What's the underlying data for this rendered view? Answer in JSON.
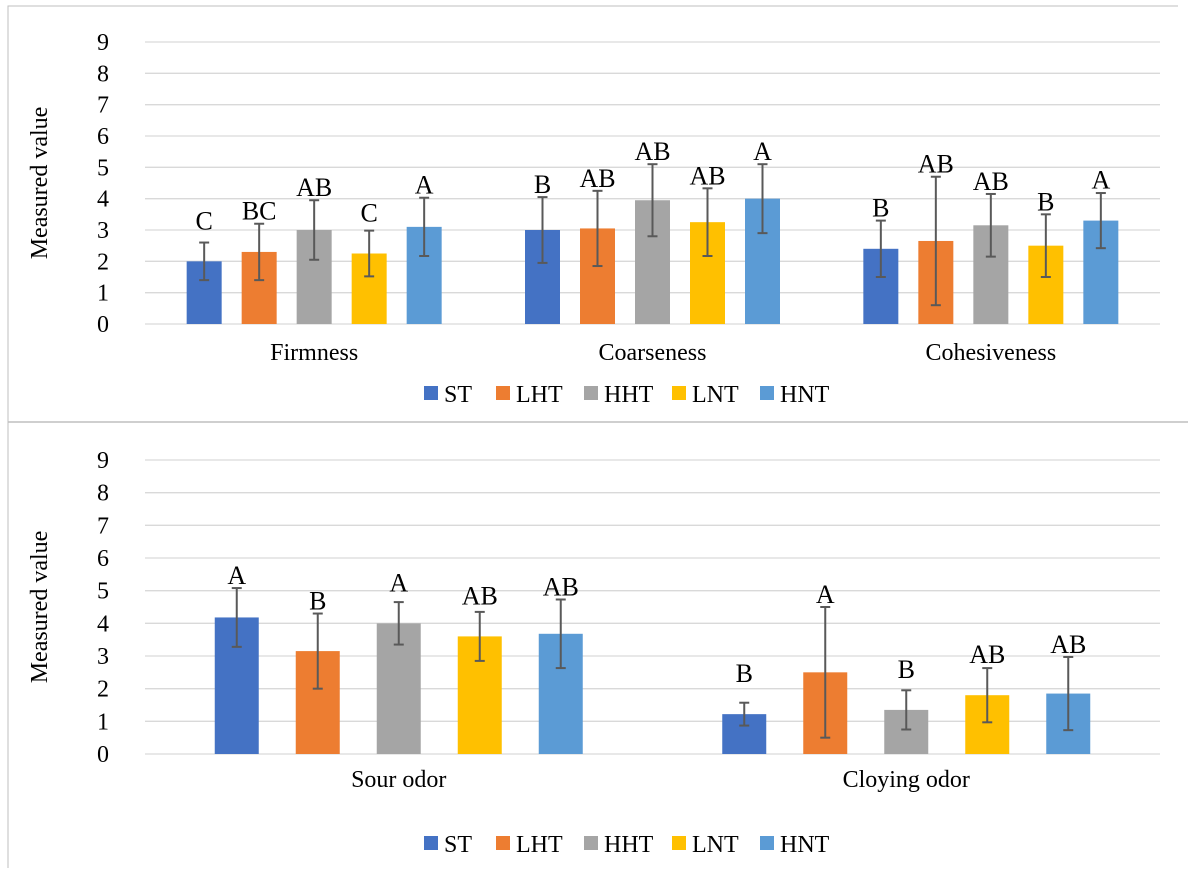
{
  "colors": {
    "ST": "#4472C4",
    "LHT": "#ED7D31",
    "HHT": "#A5A5A5",
    "LNT": "#FFC000",
    "HNT": "#5B9BD5",
    "grid": "#D9D9D9",
    "error_bar": "#595959",
    "frame": "#BFBFBF"
  },
  "chart_data": [
    {
      "type": "bar",
      "title": "",
      "ylabel": "Measured value",
      "xlabel": "",
      "ylim": [
        0,
        9
      ],
      "yticks": [
        "0",
        "1",
        "2",
        "3",
        "4",
        "5",
        "6",
        "7",
        "8",
        "9"
      ],
      "grid": true,
      "legend_position": "bottom",
      "error_bars": true,
      "categories": [
        "Firmness",
        "Coarseness",
        "Cohesiveness"
      ],
      "series": [
        {
          "name": "ST",
          "values": [
            2.0,
            3.0,
            2.4
          ],
          "errors": [
            0.6,
            1.05,
            0.9
          ],
          "letters": [
            "C",
            "B",
            "B"
          ]
        },
        {
          "name": "LHT",
          "values": [
            2.3,
            3.05,
            2.65
          ],
          "errors": [
            0.9,
            1.2,
            2.05
          ],
          "letters": [
            "BC",
            "AB",
            "AB"
          ]
        },
        {
          "name": "HHT",
          "values": [
            3.0,
            3.95,
            3.15
          ],
          "errors": [
            0.95,
            1.15,
            1.0
          ],
          "letters": [
            "AB",
            "AB",
            "AB"
          ]
        },
        {
          "name": "LNT",
          "values": [
            2.25,
            3.25,
            2.5
          ],
          "errors": [
            0.73,
            1.08,
            1.0
          ],
          "letters": [
            "C",
            "AB",
            "B"
          ]
        },
        {
          "name": "HNT",
          "values": [
            3.1,
            4.0,
            3.3
          ],
          "errors": [
            0.93,
            1.1,
            0.88
          ],
          "letters": [
            "A",
            "A",
            "A"
          ]
        }
      ]
    },
    {
      "type": "bar",
      "title": "",
      "ylabel": "Measured value",
      "xlabel": "",
      "ylim": [
        0,
        9
      ],
      "yticks": [
        "0",
        "1",
        "2",
        "3",
        "4",
        "5",
        "6",
        "7",
        "8",
        "9"
      ],
      "grid": true,
      "legend_position": "bottom",
      "error_bars": true,
      "categories": [
        "Sour odor",
        "Cloying odor"
      ],
      "series": [
        {
          "name": "ST",
          "values": [
            4.18,
            1.22
          ],
          "errors": [
            0.9,
            0.35
          ],
          "letters": [
            "A",
            "B"
          ]
        },
        {
          "name": "LHT",
          "values": [
            3.15,
            2.5
          ],
          "errors": [
            1.15,
            2.0
          ],
          "letters": [
            "B",
            "A"
          ]
        },
        {
          "name": "HHT",
          "values": [
            4.0,
            1.35
          ],
          "errors": [
            0.65,
            0.6
          ],
          "letters": [
            "A",
            "B"
          ]
        },
        {
          "name": "LNT",
          "values": [
            3.6,
            1.8
          ],
          "errors": [
            0.75,
            0.83
          ],
          "letters": [
            "AB",
            "AB"
          ]
        },
        {
          "name": "HNT",
          "values": [
            3.68,
            1.85
          ],
          "errors": [
            1.05,
            1.12
          ],
          "letters": [
            "AB",
            "AB"
          ]
        }
      ]
    }
  ]
}
